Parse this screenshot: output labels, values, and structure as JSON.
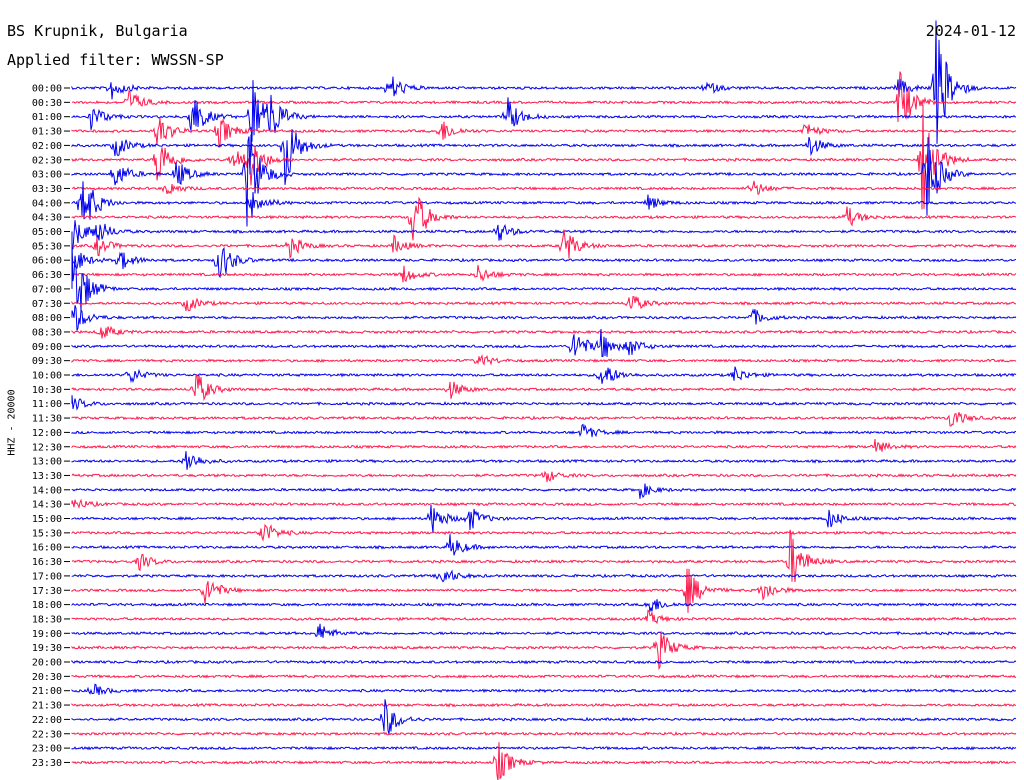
{
  "header": {
    "station": "BS Krupnik, Bulgaria",
    "filter": "Applied filter: WWSSN-SP",
    "date": "2024-01-12"
  },
  "chart_data": {
    "type": "line",
    "title": "BS Krupnik, Bulgaria",
    "ylabel": "HHZ - 20000",
    "colors": [
      "#0000ee",
      "#ff1a4d"
    ],
    "grid": false,
    "legend": "none",
    "rows": [
      "00:00",
      "00:30",
      "01:00",
      "01:30",
      "02:00",
      "02:30",
      "03:00",
      "03:30",
      "04:00",
      "04:30",
      "05:00",
      "05:30",
      "06:00",
      "06:30",
      "07:00",
      "07:30",
      "08:00",
      "08:30",
      "09:00",
      "09:30",
      "10:00",
      "10:30",
      "11:00",
      "11:30",
      "12:00",
      "12:30",
      "13:00",
      "13:30",
      "14:00",
      "14:30",
      "15:00",
      "15:30",
      "16:00",
      "16:30",
      "17:00",
      "17:30",
      "18:00",
      "18:30",
      "19:00",
      "19:30",
      "20:00",
      "20:30",
      "21:00",
      "21:30",
      "22:00",
      "22:30",
      "23:00",
      "23:30"
    ],
    "events": [
      [
        [
          0.04,
          14
        ],
        [
          0.335,
          18
        ],
        [
          0.67,
          8
        ],
        [
          0.875,
          10
        ],
        [
          0.915,
          70
        ]
      ],
      [
        [
          0.06,
          14
        ],
        [
          0.875,
          40
        ]
      ],
      [
        [
          0.02,
          14
        ],
        [
          0.125,
          30
        ],
        [
          0.19,
          55
        ],
        [
          0.21,
          22
        ],
        [
          0.46,
          22
        ]
      ],
      [
        [
          0.09,
          20
        ],
        [
          0.155,
          18
        ],
        [
          0.39,
          14
        ],
        [
          0.775,
          10
        ]
      ],
      [
        [
          0.045,
          14
        ],
        [
          0.225,
          46
        ],
        [
          0.78,
          12
        ]
      ],
      [
        [
          0.09,
          30
        ],
        [
          0.17,
          14
        ],
        [
          0.185,
          36
        ],
        [
          0.9,
          70
        ]
      ],
      [
        [
          0.045,
          16
        ],
        [
          0.11,
          16
        ],
        [
          0.185,
          60
        ],
        [
          0.905,
          50
        ]
      ],
      [
        [
          0.1,
          8
        ],
        [
          0.72,
          10
        ]
      ],
      [
        [
          0.01,
          40
        ],
        [
          0.19,
          16
        ],
        [
          0.61,
          8
        ]
      ],
      [
        [
          0.36,
          40
        ],
        [
          0.82,
          12
        ]
      ],
      [
        [
          0.0,
          20
        ],
        [
          0.025,
          14
        ],
        [
          0.45,
          12
        ]
      ],
      [
        [
          0.025,
          12
        ],
        [
          0.23,
          12
        ],
        [
          0.34,
          10
        ],
        [
          0.52,
          22
        ]
      ],
      [
        [
          0.0,
          16
        ],
        [
          0.05,
          12
        ],
        [
          0.155,
          26
        ]
      ],
      [
        [
          0.35,
          10
        ],
        [
          0.43,
          10
        ]
      ],
      [
        [
          0.0,
          60
        ]
      ],
      [
        [
          0.12,
          10
        ],
        [
          0.59,
          12
        ]
      ],
      [
        [
          0.0,
          20
        ],
        [
          0.72,
          10
        ]
      ],
      [
        [
          0.03,
          10
        ]
      ],
      [
        [
          0.53,
          22
        ],
        [
          0.56,
          16
        ],
        [
          0.59,
          10
        ]
      ],
      [
        [
          0.43,
          8
        ]
      ],
      [
        [
          0.06,
          10
        ],
        [
          0.56,
          18
        ],
        [
          0.7,
          10
        ]
      ],
      [
        [
          0.13,
          22
        ],
        [
          0.4,
          10
        ]
      ],
      [
        [
          0.0,
          8
        ]
      ],
      [
        [
          0.93,
          12
        ]
      ],
      [
        [
          0.54,
          10
        ]
      ],
      [
        [
          0.85,
          8
        ]
      ],
      [
        [
          0.12,
          14
        ]
      ],
      [
        [
          0.5,
          8
        ]
      ],
      [
        [
          0.6,
          10
        ]
      ],
      [
        [
          0.0,
          8
        ]
      ],
      [
        [
          0.38,
          18
        ],
        [
          0.42,
          14
        ],
        [
          0.8,
          12
        ]
      ],
      [
        [
          0.2,
          16
        ]
      ],
      [
        [
          0.4,
          14
        ]
      ],
      [
        [
          0.07,
          10
        ],
        [
          0.76,
          36
        ]
      ],
      [
        [
          0.39,
          12
        ]
      ],
      [
        [
          0.14,
          20
        ],
        [
          0.65,
          28
        ],
        [
          0.73,
          14
        ]
      ],
      [
        [
          0.61,
          12
        ]
      ],
      [
        [
          0.61,
          8
        ]
      ],
      [
        [
          0.26,
          12
        ]
      ],
      [
        [
          0.62,
          24
        ]
      ],
      [],
      [],
      [
        [
          0.02,
          8
        ]
      ],
      [],
      [
        [
          0.33,
          24
        ]
      ],
      [],
      [],
      [
        [
          0.45,
          24
        ]
      ]
    ]
  }
}
